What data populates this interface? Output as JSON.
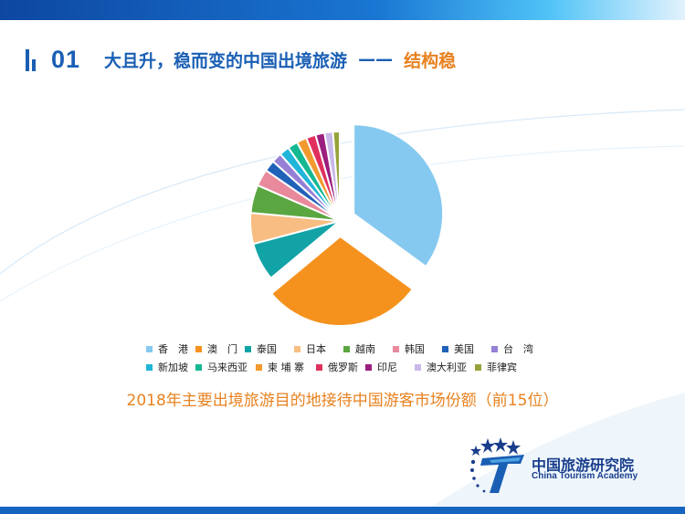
{
  "header": {
    "section_number": "01",
    "title": "大且升，稳而变的中国出境旅游",
    "dash": "——",
    "tag": "结构稳"
  },
  "chart_data": {
    "type": "pie",
    "title": "2018年主要出境旅游目的地接待中国游客市场份额（前15位）",
    "legend_position": "bottom",
    "series": [
      {
        "name": "香　港",
        "value": 34.5,
        "color": "#86c9f0",
        "exploded": true
      },
      {
        "name": "澳　门",
        "value": 28.5,
        "color": "#f5921e",
        "exploded": true
      },
      {
        "name": "泰国",
        "value": 6.8,
        "color": "#12a3a6"
      },
      {
        "name": "日本",
        "value": 5.5,
        "color": "#f8bd82"
      },
      {
        "name": "越南",
        "value": 5.0,
        "color": "#5aa640"
      },
      {
        "name": "韩国",
        "value": 3.0,
        "color": "#e8899c"
      },
      {
        "name": "美国",
        "value": 2.0,
        "color": "#1f62b8"
      },
      {
        "name": "台　湾",
        "value": 1.8,
        "color": "#9580d6"
      },
      {
        "name": "新加坡",
        "value": 1.8,
        "color": "#21b5d9"
      },
      {
        "name": "马来西亚",
        "value": 1.8,
        "color": "#14b891"
      },
      {
        "name": "柬 埔 寨",
        "value": 1.8,
        "color": "#f29a2e"
      },
      {
        "name": "俄罗斯",
        "value": 1.7,
        "color": "#e0305e"
      },
      {
        "name": "印尼",
        "value": 1.6,
        "color": "#9c1e7e"
      },
      {
        "name": "澳大利亚",
        "value": 1.5,
        "color": "#c9b8ea"
      },
      {
        "name": "菲律宾",
        "value": 1.2,
        "color": "#97a33a"
      }
    ]
  },
  "logo": {
    "name_cn": "中国旅游研究院",
    "name_en": "China Tourism Academy"
  },
  "theme": {
    "primary": "#1a5fb4",
    "accent": "#e8811f"
  }
}
